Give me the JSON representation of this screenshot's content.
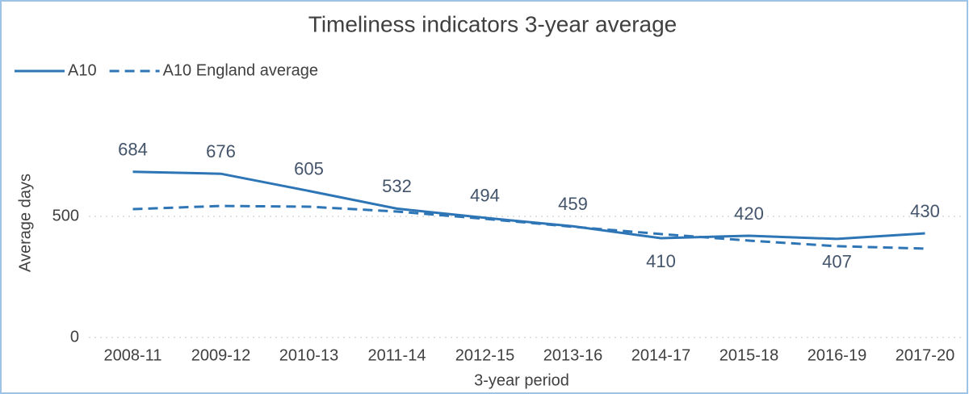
{
  "chart_data": {
    "type": "line",
    "title": "Timeliness indicators 3-year average",
    "x_label": "3-year period",
    "y_label": "Average days",
    "categories": [
      "2008-11",
      "2009-12",
      "2010-13",
      "2011-14",
      "2012-15",
      "2013-16",
      "2014-17",
      "2015-18",
      "2016-19",
      "2017-20"
    ],
    "series": [
      {
        "name": "A10",
        "color": "#2e75b6",
        "dashed": false,
        "values": [
          684,
          676,
          605,
          532,
          494,
          459,
          410,
          420,
          407,
          430
        ],
        "show_labels": true
      },
      {
        "name": "A10 England average",
        "color": "#2e75b6",
        "dashed": true,
        "values": [
          530,
          543,
          540,
          520,
          490,
          457,
          427,
          400,
          377,
          367
        ],
        "show_labels": false
      }
    ],
    "ylim": [
      0,
      1000
    ],
    "yticks": [
      0,
      500
    ],
    "grid": true,
    "legend": "top-left"
  }
}
